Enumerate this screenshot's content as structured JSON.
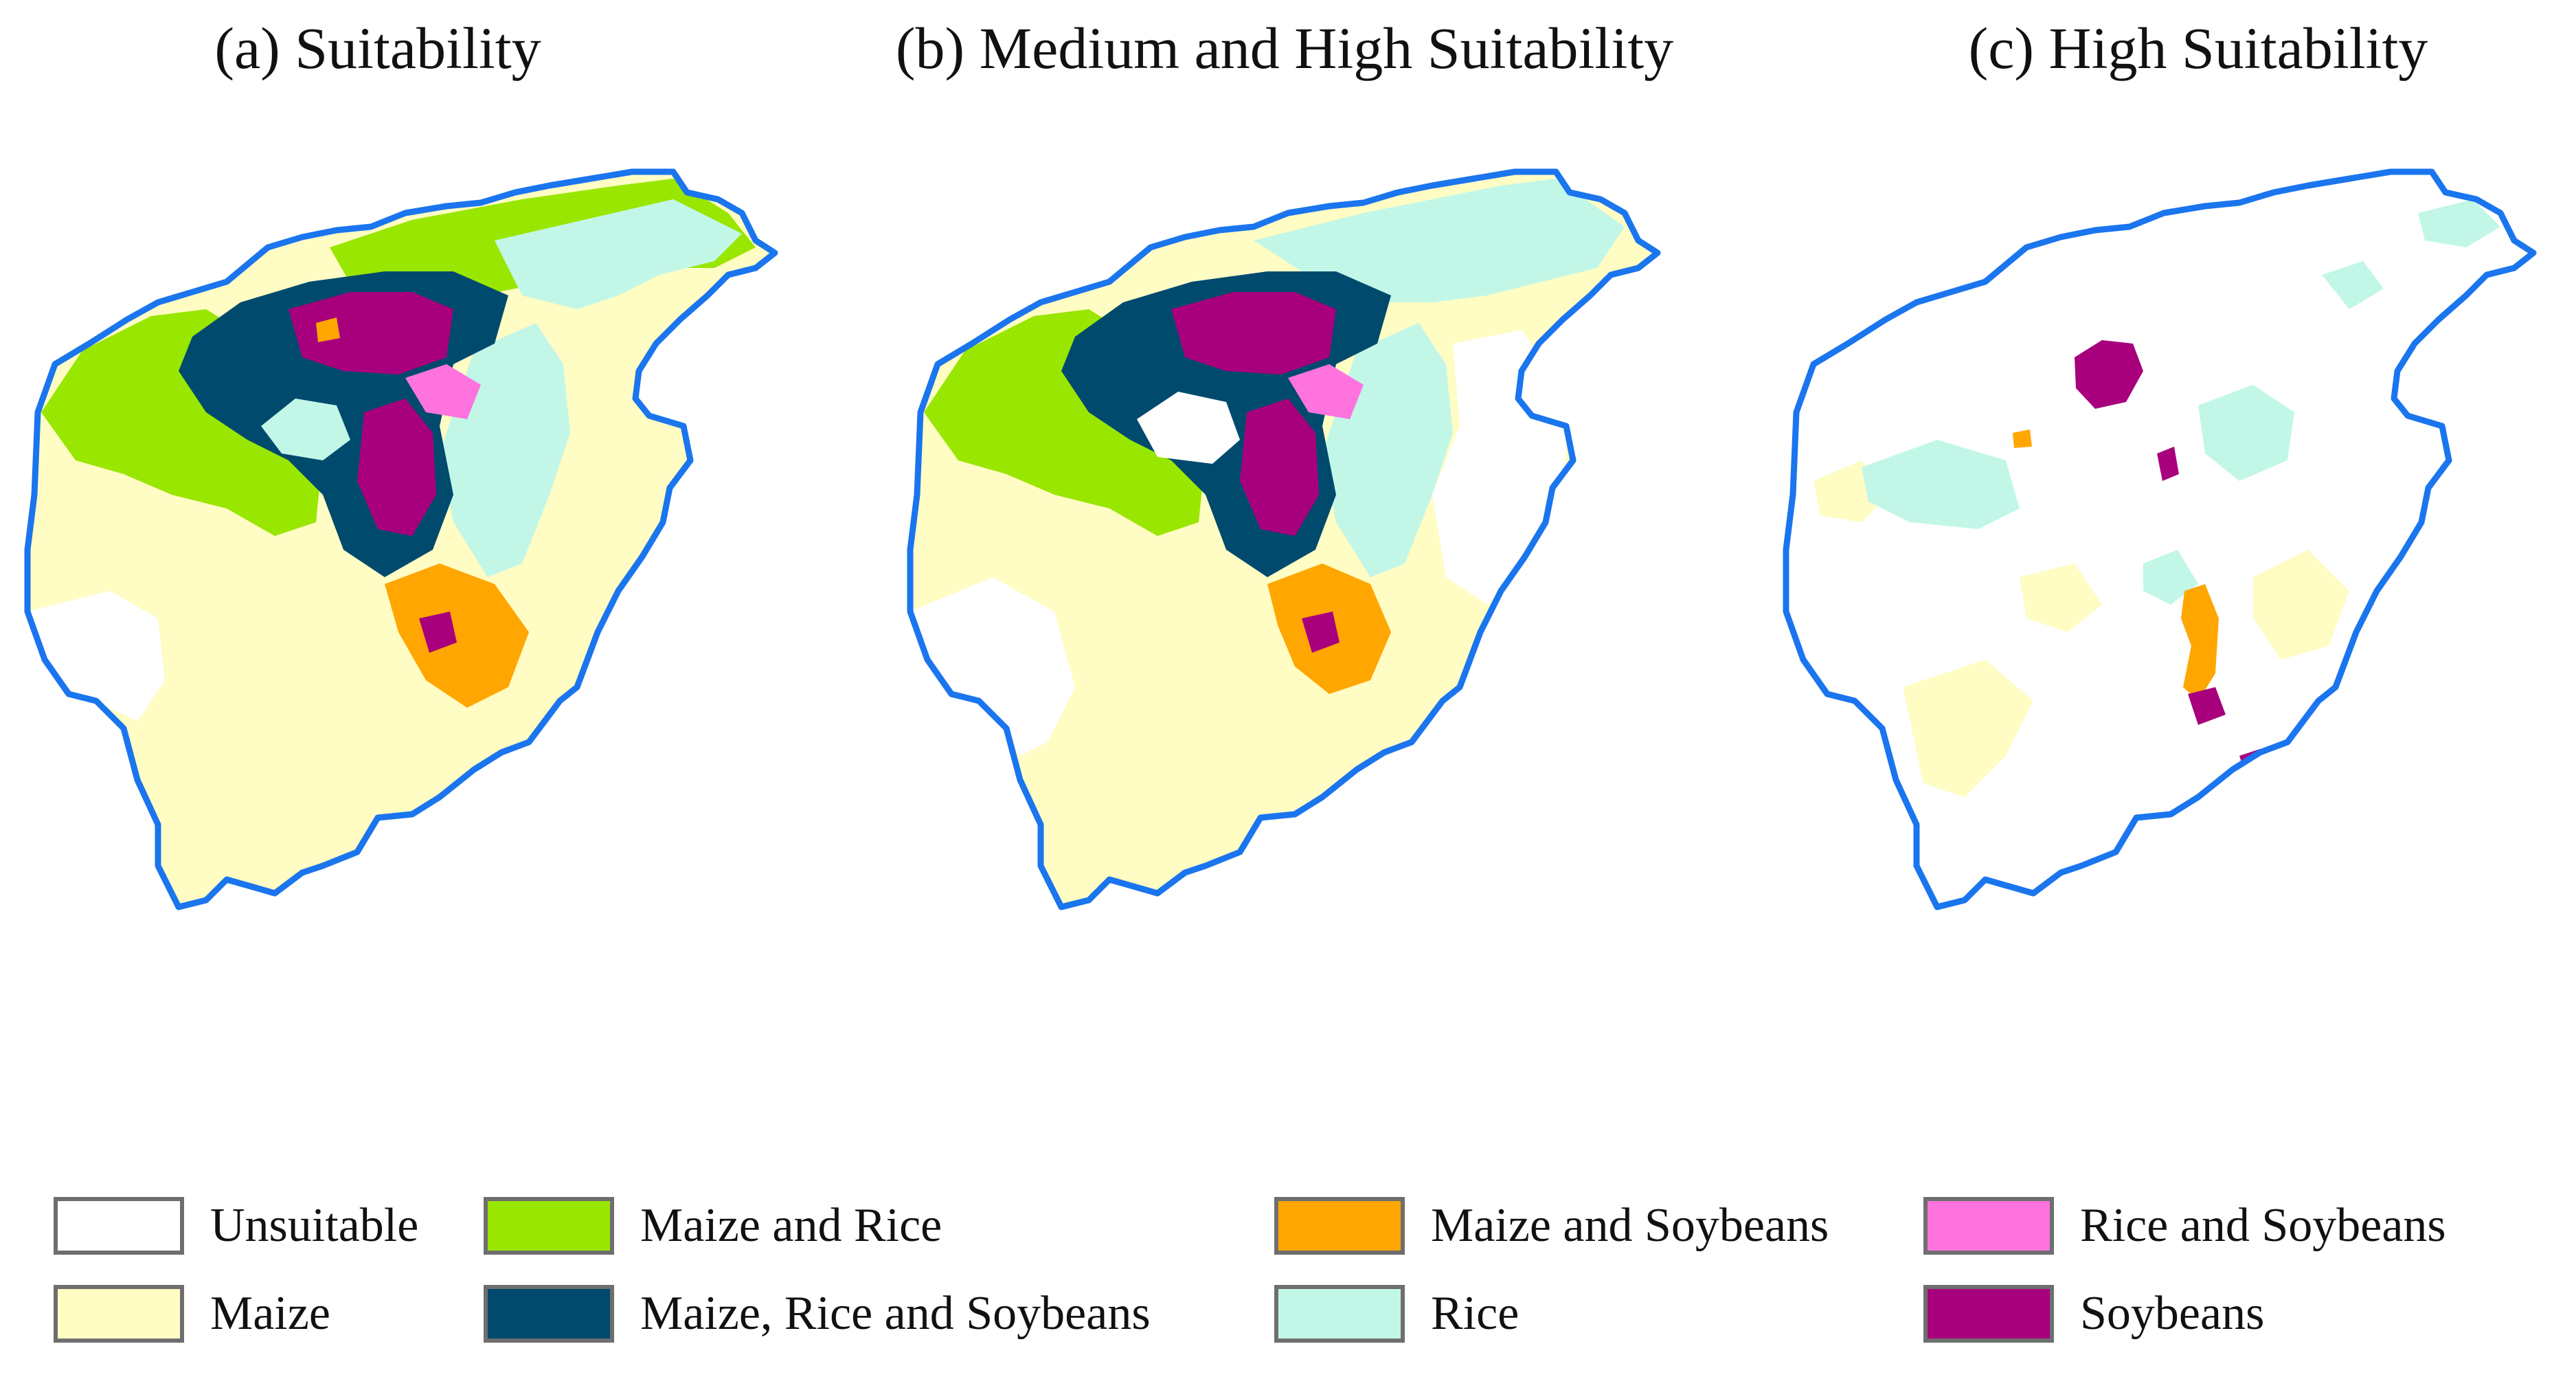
{
  "panels": [
    {
      "id": "a",
      "title": "(a) Suitability"
    },
    {
      "id": "b",
      "title": "(b) Medium and High Suitability"
    },
    {
      "id": "c",
      "title": "(c) High Suitability"
    }
  ],
  "legend": [
    {
      "key": "unsuitable",
      "label": "Unsuitable",
      "color": "#ffffff"
    },
    {
      "key": "maize",
      "label": "Maize",
      "color": "#fffcc4"
    },
    {
      "key": "maize_rice",
      "label": "Maize and Rice",
      "color": "#99e600"
    },
    {
      "key": "maize_rice_soy",
      "label": "Maize, Rice and Soybeans",
      "color": "#004a6e"
    },
    {
      "key": "maize_soy",
      "label": "Maize and Soybeans",
      "color": "#ffa600"
    },
    {
      "key": "rice",
      "label": "Rice",
      "color": "#c2f7e8"
    },
    {
      "key": "rice_soy",
      "label": "Rice and Soybeans",
      "color": "#ff73df"
    },
    {
      "key": "soy",
      "label": "Soybeans",
      "color": "#a8007d"
    }
  ],
  "boundary_color": "#1a75ee"
}
